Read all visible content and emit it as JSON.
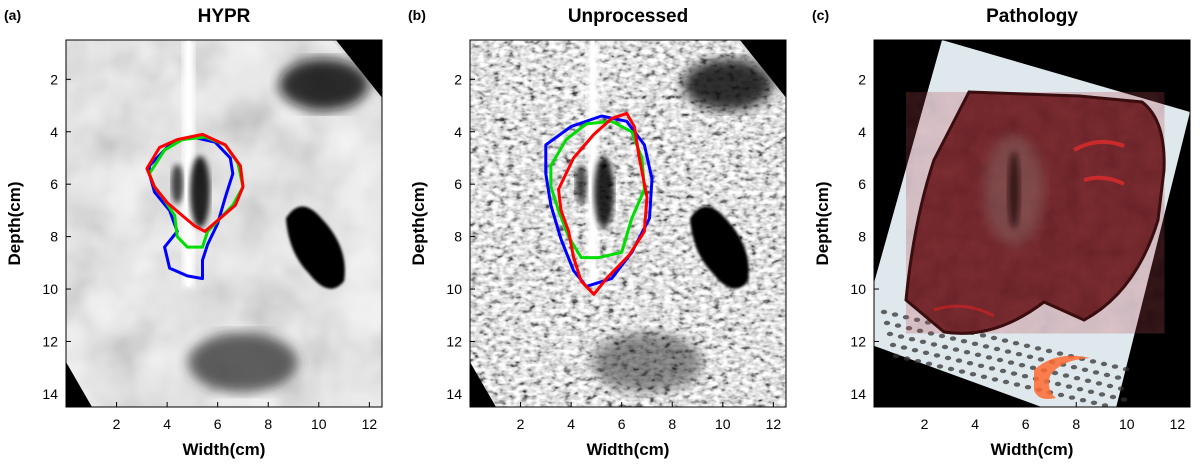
{
  "panels": [
    {
      "id": "a",
      "label": "(a)",
      "title": "HYPR",
      "kind": "ultrasound-smooth",
      "xlabel": "Width(cm)",
      "ylabel": "Depth(cm)",
      "xticks": [
        "2",
        "4",
        "6",
        "8",
        "10",
        "12"
      ],
      "yticks": [
        "2",
        "4",
        "6",
        "8",
        "10",
        "12",
        "14"
      ],
      "contours": [
        {
          "color": "#0000ff",
          "points": [
            [
              3.3,
              5.3
            ],
            [
              4.2,
              4.4
            ],
            [
              5.0,
              4.2
            ],
            [
              5.9,
              4.4
            ],
            [
              6.5,
              5.0
            ],
            [
              6.6,
              5.6
            ],
            [
              6.3,
              6.5
            ],
            [
              6.0,
              7.5
            ],
            [
              5.6,
              8.3
            ],
            [
              5.4,
              8.9
            ],
            [
              5.4,
              9.6
            ],
            [
              4.8,
              9.5
            ],
            [
              4.1,
              9.2
            ],
            [
              3.9,
              8.4
            ],
            [
              4.4,
              7.8
            ],
            [
              4.1,
              7.0
            ],
            [
              3.5,
              6.3
            ],
            [
              3.3,
              5.6
            ]
          ]
        },
        {
          "color": "#00dd00",
          "points": [
            [
              3.3,
              5.6
            ],
            [
              3.9,
              4.7
            ],
            [
              4.6,
              4.3
            ],
            [
              5.5,
              4.2
            ],
            [
              6.3,
              4.5
            ],
            [
              6.8,
              5.2
            ],
            [
              7.0,
              6.1
            ],
            [
              6.6,
              6.8
            ],
            [
              6.1,
              7.3
            ],
            [
              5.6,
              7.8
            ],
            [
              5.4,
              8.4
            ],
            [
              4.8,
              8.4
            ],
            [
              4.4,
              8.0
            ],
            [
              4.3,
              7.2
            ],
            [
              3.9,
              6.6
            ],
            [
              3.5,
              6.1
            ]
          ]
        },
        {
          "color": "#ff0000",
          "points": [
            [
              3.2,
              5.4
            ],
            [
              3.7,
              4.6
            ],
            [
              4.4,
              4.3
            ],
            [
              5.4,
              4.1
            ],
            [
              6.3,
              4.5
            ],
            [
              6.9,
              5.3
            ],
            [
              7.0,
              6.1
            ],
            [
              6.7,
              6.8
            ],
            [
              6.1,
              7.3
            ],
            [
              5.5,
              7.8
            ],
            [
              5.1,
              7.6
            ],
            [
              4.6,
              7.2
            ],
            [
              4.0,
              6.7
            ],
            [
              3.5,
              6.1
            ]
          ]
        }
      ]
    },
    {
      "id": "b",
      "label": "(b)",
      "title": "Unprocessed",
      "kind": "ultrasound-speckle",
      "xlabel": "Width(cm)",
      "ylabel": "Depth(cm)",
      "xticks": [
        "2",
        "4",
        "6",
        "8",
        "10",
        "12"
      ],
      "yticks": [
        "2",
        "4",
        "6",
        "8",
        "10",
        "12",
        "14"
      ],
      "contours": [
        {
          "color": "#0000ff",
          "points": [
            [
              3.0,
              4.5
            ],
            [
              4.0,
              3.8
            ],
            [
              5.2,
              3.4
            ],
            [
              6.2,
              3.6
            ],
            [
              6.9,
              4.5
            ],
            [
              7.2,
              5.8
            ],
            [
              7.1,
              7.3
            ],
            [
              6.4,
              8.6
            ],
            [
              5.6,
              9.6
            ],
            [
              4.6,
              9.9
            ],
            [
              4.1,
              9.3
            ],
            [
              3.6,
              8.1
            ],
            [
              3.2,
              6.8
            ],
            [
              3.0,
              5.6
            ]
          ]
        },
        {
          "color": "#00dd00",
          "points": [
            [
              3.2,
              5.3
            ],
            [
              3.8,
              4.3
            ],
            [
              4.6,
              3.7
            ],
            [
              5.6,
              3.6
            ],
            [
              6.4,
              4.0
            ],
            [
              6.8,
              5.0
            ],
            [
              6.9,
              6.2
            ],
            [
              6.4,
              7.3
            ],
            [
              6.0,
              8.6
            ],
            [
              5.1,
              8.8
            ],
            [
              4.4,
              8.8
            ],
            [
              3.9,
              8.0
            ],
            [
              3.5,
              7.0
            ],
            [
              3.2,
              6.1
            ]
          ]
        },
        {
          "color": "#ff0000",
          "points": [
            [
              3.5,
              6.2
            ],
            [
              4.1,
              5.0
            ],
            [
              4.9,
              4.1
            ],
            [
              5.6,
              3.5
            ],
            [
              6.2,
              3.3
            ],
            [
              6.5,
              3.8
            ],
            [
              6.7,
              5.0
            ],
            [
              7.0,
              6.5
            ],
            [
              6.9,
              7.8
            ],
            [
              6.3,
              8.7
            ],
            [
              5.4,
              9.6
            ],
            [
              4.9,
              10.2
            ],
            [
              4.4,
              9.7
            ],
            [
              4.1,
              8.8
            ],
            [
              3.9,
              7.8
            ],
            [
              3.6,
              7.0
            ]
          ]
        }
      ]
    },
    {
      "id": "c",
      "label": "(c)",
      "title": "Pathology",
      "kind": "pathology-photo",
      "xlabel": "Width(cm)",
      "ylabel": "Depth(cm)",
      "xticks": [
        "2",
        "4",
        "6",
        "8",
        "10",
        "12"
      ],
      "yticks": [
        "2",
        "4",
        "6",
        "8",
        "10",
        "12",
        "14"
      ],
      "contours": []
    }
  ],
  "axes": {
    "xlim": [
      0,
      12.5
    ],
    "ylim": [
      0.5,
      14.5
    ],
    "x_tick_values": [
      2,
      4,
      6,
      8,
      10,
      12
    ],
    "y_tick_values": [
      2,
      4,
      6,
      8,
      10,
      12,
      14
    ],
    "y_reversed": true
  },
  "colors": {
    "blue": "#0000ff",
    "green": "#00dd00",
    "red": "#ff0000",
    "background": "#000000"
  }
}
